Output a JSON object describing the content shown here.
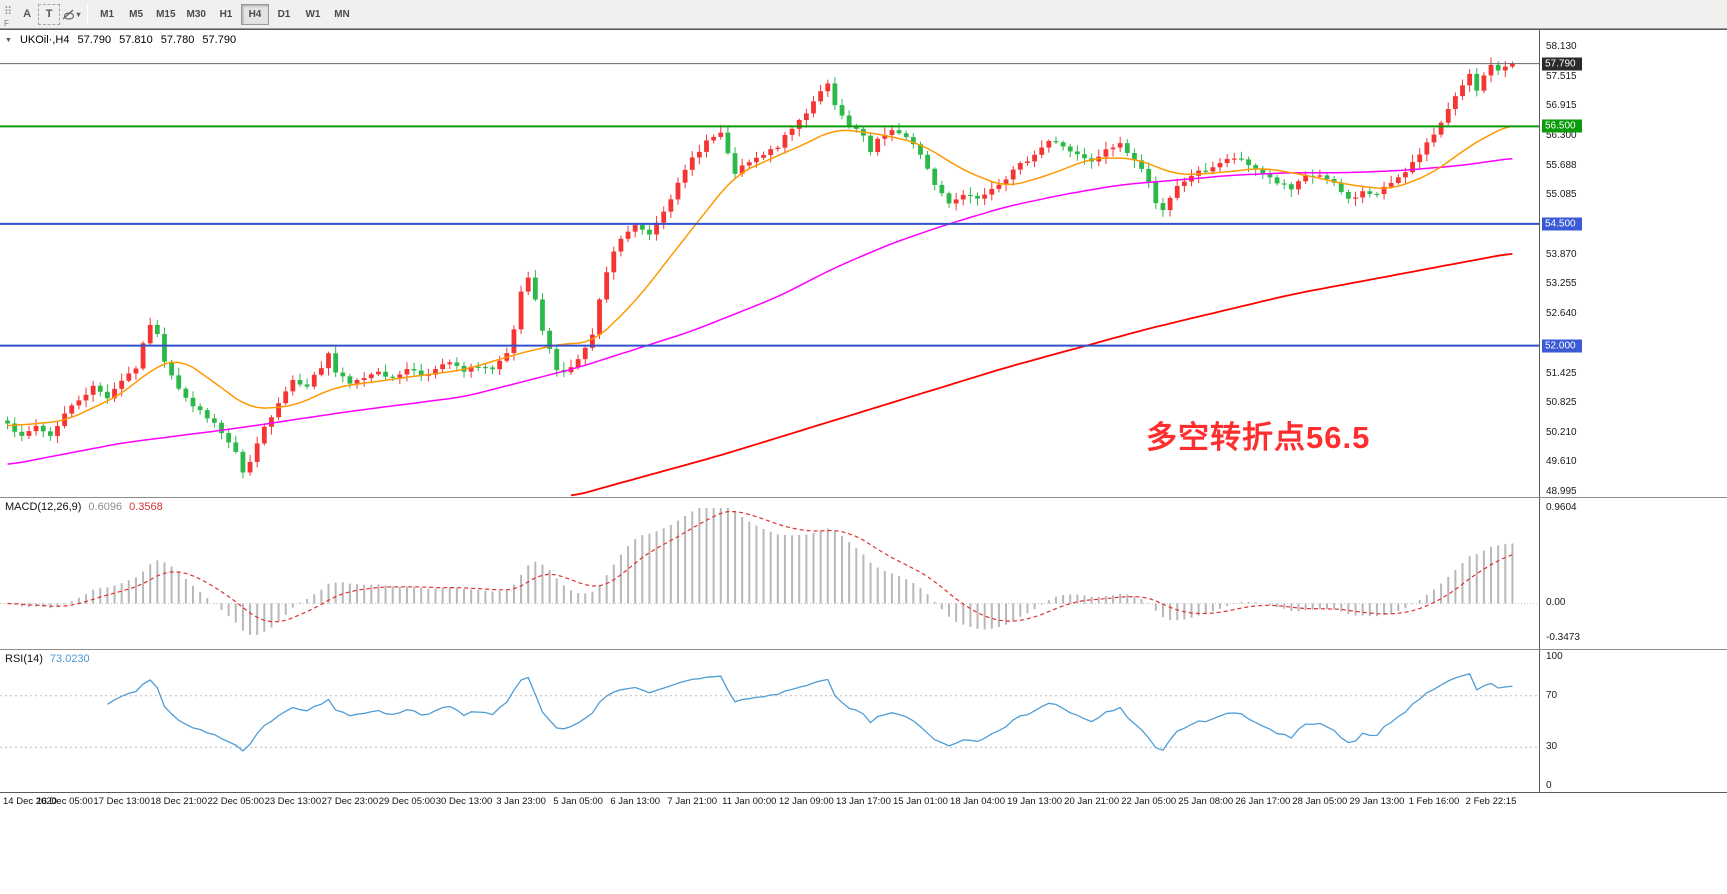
{
  "icons": {
    "handle": "⠿",
    "caret": "▾",
    "collapse": "▼"
  },
  "toolbar": {
    "f_label": "F",
    "cursor_tool": "A",
    "text_tool": "T",
    "timeframes": [
      "M1",
      "M5",
      "M15",
      "M30",
      "H1",
      "H4",
      "D1",
      "W1",
      "MN"
    ],
    "active_timeframe": "H4"
  },
  "symbol_header": {
    "symbol": "UKOil·,H4",
    "open": "57.790",
    "high": "57.810",
    "low": "57.780",
    "close": "57.790"
  },
  "annotation": {
    "text": "多空转折点56.5",
    "color": "#fe2e2e"
  },
  "price_axis": {
    "ticks": [
      {
        "text": "58.130",
        "price": 58.13
      },
      {
        "text": "57.515",
        "price": 57.515
      },
      {
        "text": "56.915",
        "price": 56.915
      },
      {
        "text": "56.300",
        "price": 56.3
      },
      {
        "text": "55.688",
        "price": 55.688
      },
      {
        "text": "55.085",
        "price": 55.085
      },
      {
        "text": "53.870",
        "price": 53.87
      },
      {
        "text": "53.255",
        "price": 53.255
      },
      {
        "text": "52.640",
        "price": 52.64
      },
      {
        "text": "51.425",
        "price": 51.425
      },
      {
        "text": "50.825",
        "price": 50.825
      },
      {
        "text": "50.210",
        "price": 50.21
      },
      {
        "text": "49.610",
        "price": 49.61
      },
      {
        "text": "48.995",
        "price": 48.995
      }
    ],
    "badges": [
      {
        "text": "57.790",
        "price": 57.79,
        "bg": "#2a2a2a"
      },
      {
        "text": "56.500",
        "price": 56.5,
        "bg": "#0a9a0a"
      },
      {
        "text": "54.500",
        "price": 54.5,
        "bg": "#3a5ad6"
      },
      {
        "text": "52.000",
        "price": 52.0,
        "bg": "#3a5ad6"
      }
    ]
  },
  "macd_panel": {
    "title": "MACD(12,26,9)",
    "value_main": "0.6096",
    "value_signal": "0.3568",
    "axis": [
      {
        "text": "0.9604",
        "value": 0.9604
      },
      {
        "text": "0.00",
        "value": 0
      },
      {
        "text": "-0.3473",
        "value": -0.3473
      }
    ]
  },
  "rsi_panel": {
    "title": "RSI(14)",
    "value": "73.0230",
    "axis": [
      {
        "text": "100",
        "value": 100
      },
      {
        "text": "70",
        "value": 70
      },
      {
        "text": "30",
        "value": 30
      },
      {
        "text": "0",
        "value": 0
      }
    ]
  },
  "time_axis": [
    "14 Dec 2020",
    "16 Dec 05:00",
    "17 Dec 13:00",
    "18 Dec 21:00",
    "22 Dec 05:00",
    "23 Dec 13:00",
    "27 Dec 23:00",
    "29 Dec 05:00",
    "30 Dec 13:00",
    "3 Jan 23:00",
    "5 Jan 05:00",
    "6 Jan 13:00",
    "7 Jan 21:00",
    "11 Jan 00:00",
    "12 Jan 09:00",
    "13 Jan 17:00",
    "15 Jan 01:00",
    "18 Jan 04:00",
    "19 Jan 13:00",
    "20 Jan 21:00",
    "22 Jan 05:00",
    "25 Jan 08:00",
    "26 Jan 17:00",
    "28 Jan 05:00",
    "29 Jan 13:00",
    "1 Feb 16:00",
    "2 Feb 22:15"
  ],
  "chart_data": {
    "type": "candlestick",
    "symbol": "UKOil",
    "timeframe": "H4",
    "candle_count": 212,
    "price_range": [
      48.995,
      58.13
    ],
    "last_ohlc": {
      "open": 57.79,
      "high": 57.81,
      "low": 57.78,
      "close": 57.79
    },
    "current_price": 57.79,
    "horizontal_levels": [
      {
        "price": 56.5,
        "color": "#0a9a0a"
      },
      {
        "price": 54.5,
        "color": "#3050cc"
      },
      {
        "price": 52.0,
        "color": "#3050cc"
      }
    ],
    "colors": {
      "up": "#f53434",
      "down": "#2db84a",
      "ma_fast": "#ff9900",
      "ma_mid": "#ff00ff",
      "ma_slow": "#ff0000",
      "macd_hist": "#b8b8b8",
      "macd_signal": "#e03030",
      "rsi": "#4f9dd6"
    },
    "close_anchors": [
      [
        0,
        50.45
      ],
      [
        2,
        50.1
      ],
      [
        4,
        50.35
      ],
      [
        6,
        50.15
      ],
      [
        8,
        50.6
      ],
      [
        10,
        50.9
      ],
      [
        12,
        51.15
      ],
      [
        14,
        50.95
      ],
      [
        16,
        51.3
      ],
      [
        18,
        51.55
      ],
      [
        19,
        52.0
      ],
      [
        20,
        52.45
      ],
      [
        21,
        52.2
      ],
      [
        22,
        51.7
      ],
      [
        24,
        51.15
      ],
      [
        26,
        50.75
      ],
      [
        28,
        50.55
      ],
      [
        30,
        50.2
      ],
      [
        32,
        49.8
      ],
      [
        33,
        49.35
      ],
      [
        34,
        49.6
      ],
      [
        36,
        50.3
      ],
      [
        38,
        50.85
      ],
      [
        40,
        51.3
      ],
      [
        42,
        51.2
      ],
      [
        44,
        51.55
      ],
      [
        45,
        51.85
      ],
      [
        46,
        51.45
      ],
      [
        48,
        51.2
      ],
      [
        50,
        51.35
      ],
      [
        52,
        51.5
      ],
      [
        54,
        51.3
      ],
      [
        56,
        51.55
      ],
      [
        58,
        51.4
      ],
      [
        60,
        51.5
      ],
      [
        62,
        51.65
      ],
      [
        64,
        51.45
      ],
      [
        66,
        51.6
      ],
      [
        68,
        51.5
      ],
      [
        70,
        51.8
      ],
      [
        71,
        52.3
      ],
      [
        72,
        53.1
      ],
      [
        73,
        53.35
      ],
      [
        74,
        52.9
      ],
      [
        75,
        52.3
      ],
      [
        76,
        51.9
      ],
      [
        77,
        51.55
      ],
      [
        78,
        51.45
      ],
      [
        80,
        51.7
      ],
      [
        82,
        52.2
      ],
      [
        83,
        52.9
      ],
      [
        84,
        53.5
      ],
      [
        85,
        53.9
      ],
      [
        86,
        54.2
      ],
      [
        88,
        54.45
      ],
      [
        90,
        54.3
      ],
      [
        92,
        54.8
      ],
      [
        94,
        55.3
      ],
      [
        96,
        55.85
      ],
      [
        98,
        56.2
      ],
      [
        100,
        56.35
      ],
      [
        101,
        55.9
      ],
      [
        102,
        55.55
      ],
      [
        104,
        55.75
      ],
      [
        106,
        55.9
      ],
      [
        108,
        56.1
      ],
      [
        110,
        56.45
      ],
      [
        112,
        56.8
      ],
      [
        114,
        57.25
      ],
      [
        115,
        57.35
      ],
      [
        116,
        56.9
      ],
      [
        118,
        56.5
      ],
      [
        120,
        56.3
      ],
      [
        121,
        55.95
      ],
      [
        122,
        56.2
      ],
      [
        124,
        56.45
      ],
      [
        126,
        56.25
      ],
      [
        128,
        55.95
      ],
      [
        130,
        55.3
      ],
      [
        132,
        54.95
      ],
      [
        134,
        55.1
      ],
      [
        136,
        55.05
      ],
      [
        138,
        55.25
      ],
      [
        140,
        55.45
      ],
      [
        142,
        55.7
      ],
      [
        144,
        55.95
      ],
      [
        146,
        56.2
      ],
      [
        148,
        56.1
      ],
      [
        150,
        55.9
      ],
      [
        152,
        55.75
      ],
      [
        154,
        56.0
      ],
      [
        156,
        56.15
      ],
      [
        158,
        55.8
      ],
      [
        160,
        55.4
      ],
      [
        161,
        54.95
      ],
      [
        162,
        54.75
      ],
      [
        164,
        55.25
      ],
      [
        166,
        55.5
      ],
      [
        168,
        55.6
      ],
      [
        170,
        55.75
      ],
      [
        172,
        55.85
      ],
      [
        174,
        55.7
      ],
      [
        176,
        55.55
      ],
      [
        178,
        55.35
      ],
      [
        180,
        55.2
      ],
      [
        182,
        55.45
      ],
      [
        184,
        55.5
      ],
      [
        186,
        55.3
      ],
      [
        188,
        55.0
      ],
      [
        190,
        55.15
      ],
      [
        192,
        55.1
      ],
      [
        194,
        55.35
      ],
      [
        196,
        55.6
      ],
      [
        198,
        55.9
      ],
      [
        200,
        56.35
      ],
      [
        201,
        56.6
      ],
      [
        202,
        56.9
      ],
      [
        203,
        57.1
      ],
      [
        204,
        57.3
      ],
      [
        205,
        57.55
      ],
      [
        206,
        57.2
      ],
      [
        207,
        57.5
      ],
      [
        208,
        57.79
      ],
      [
        209,
        57.6
      ],
      [
        210,
        57.75
      ],
      [
        211,
        57.79
      ]
    ],
    "ma_fast_anchors": [
      [
        0,
        50.35
      ],
      [
        8,
        50.45
      ],
      [
        16,
        51.0
      ],
      [
        20,
        51.5
      ],
      [
        24,
        51.75
      ],
      [
        28,
        51.35
      ],
      [
        34,
        50.7
      ],
      [
        40,
        50.75
      ],
      [
        46,
        51.15
      ],
      [
        56,
        51.35
      ],
      [
        64,
        51.5
      ],
      [
        72,
        51.85
      ],
      [
        78,
        52.05
      ],
      [
        82,
        52.05
      ],
      [
        88,
        52.9
      ],
      [
        96,
        54.4
      ],
      [
        102,
        55.5
      ],
      [
        108,
        55.9
      ],
      [
        112,
        56.15
      ],
      [
        116,
        56.45
      ],
      [
        122,
        56.35
      ],
      [
        128,
        56.15
      ],
      [
        134,
        55.6
      ],
      [
        140,
        55.25
      ],
      [
        146,
        55.5
      ],
      [
        152,
        55.85
      ],
      [
        158,
        55.85
      ],
      [
        164,
        55.5
      ],
      [
        170,
        55.55
      ],
      [
        176,
        55.65
      ],
      [
        182,
        55.5
      ],
      [
        188,
        55.3
      ],
      [
        194,
        55.2
      ],
      [
        200,
        55.55
      ],
      [
        204,
        56.0
      ],
      [
        208,
        56.35
      ],
      [
        211,
        56.55
      ]
    ],
    "ma_mid_anchors": [
      [
        0,
        49.55
      ],
      [
        16,
        50.0
      ],
      [
        32,
        50.3
      ],
      [
        48,
        50.65
      ],
      [
        64,
        50.95
      ],
      [
        80,
        51.55
      ],
      [
        96,
        52.3
      ],
      [
        108,
        53.0
      ],
      [
        116,
        53.6
      ],
      [
        124,
        54.1
      ],
      [
        132,
        54.5
      ],
      [
        140,
        54.85
      ],
      [
        148,
        55.1
      ],
      [
        156,
        55.3
      ],
      [
        164,
        55.4
      ],
      [
        172,
        55.5
      ],
      [
        180,
        55.55
      ],
      [
        188,
        55.55
      ],
      [
        196,
        55.6
      ],
      [
        204,
        55.7
      ],
      [
        211,
        55.85
      ]
    ],
    "ma_slow_anchors": [
      [
        79,
        48.9
      ],
      [
        100,
        49.75
      ],
      [
        120,
        50.65
      ],
      [
        140,
        51.55
      ],
      [
        160,
        52.35
      ],
      [
        180,
        53.05
      ],
      [
        200,
        53.6
      ],
      [
        211,
        53.9
      ]
    ],
    "macd": {
      "params": [
        12,
        26,
        9
      ],
      "range": [
        -0.3473,
        0.9604
      ],
      "last_main": 0.6096,
      "last_signal": 0.3568
    },
    "rsi": {
      "period": 14,
      "last": 73.023,
      "levels": [
        70,
        30
      ],
      "range": [
        0,
        100
      ]
    }
  }
}
